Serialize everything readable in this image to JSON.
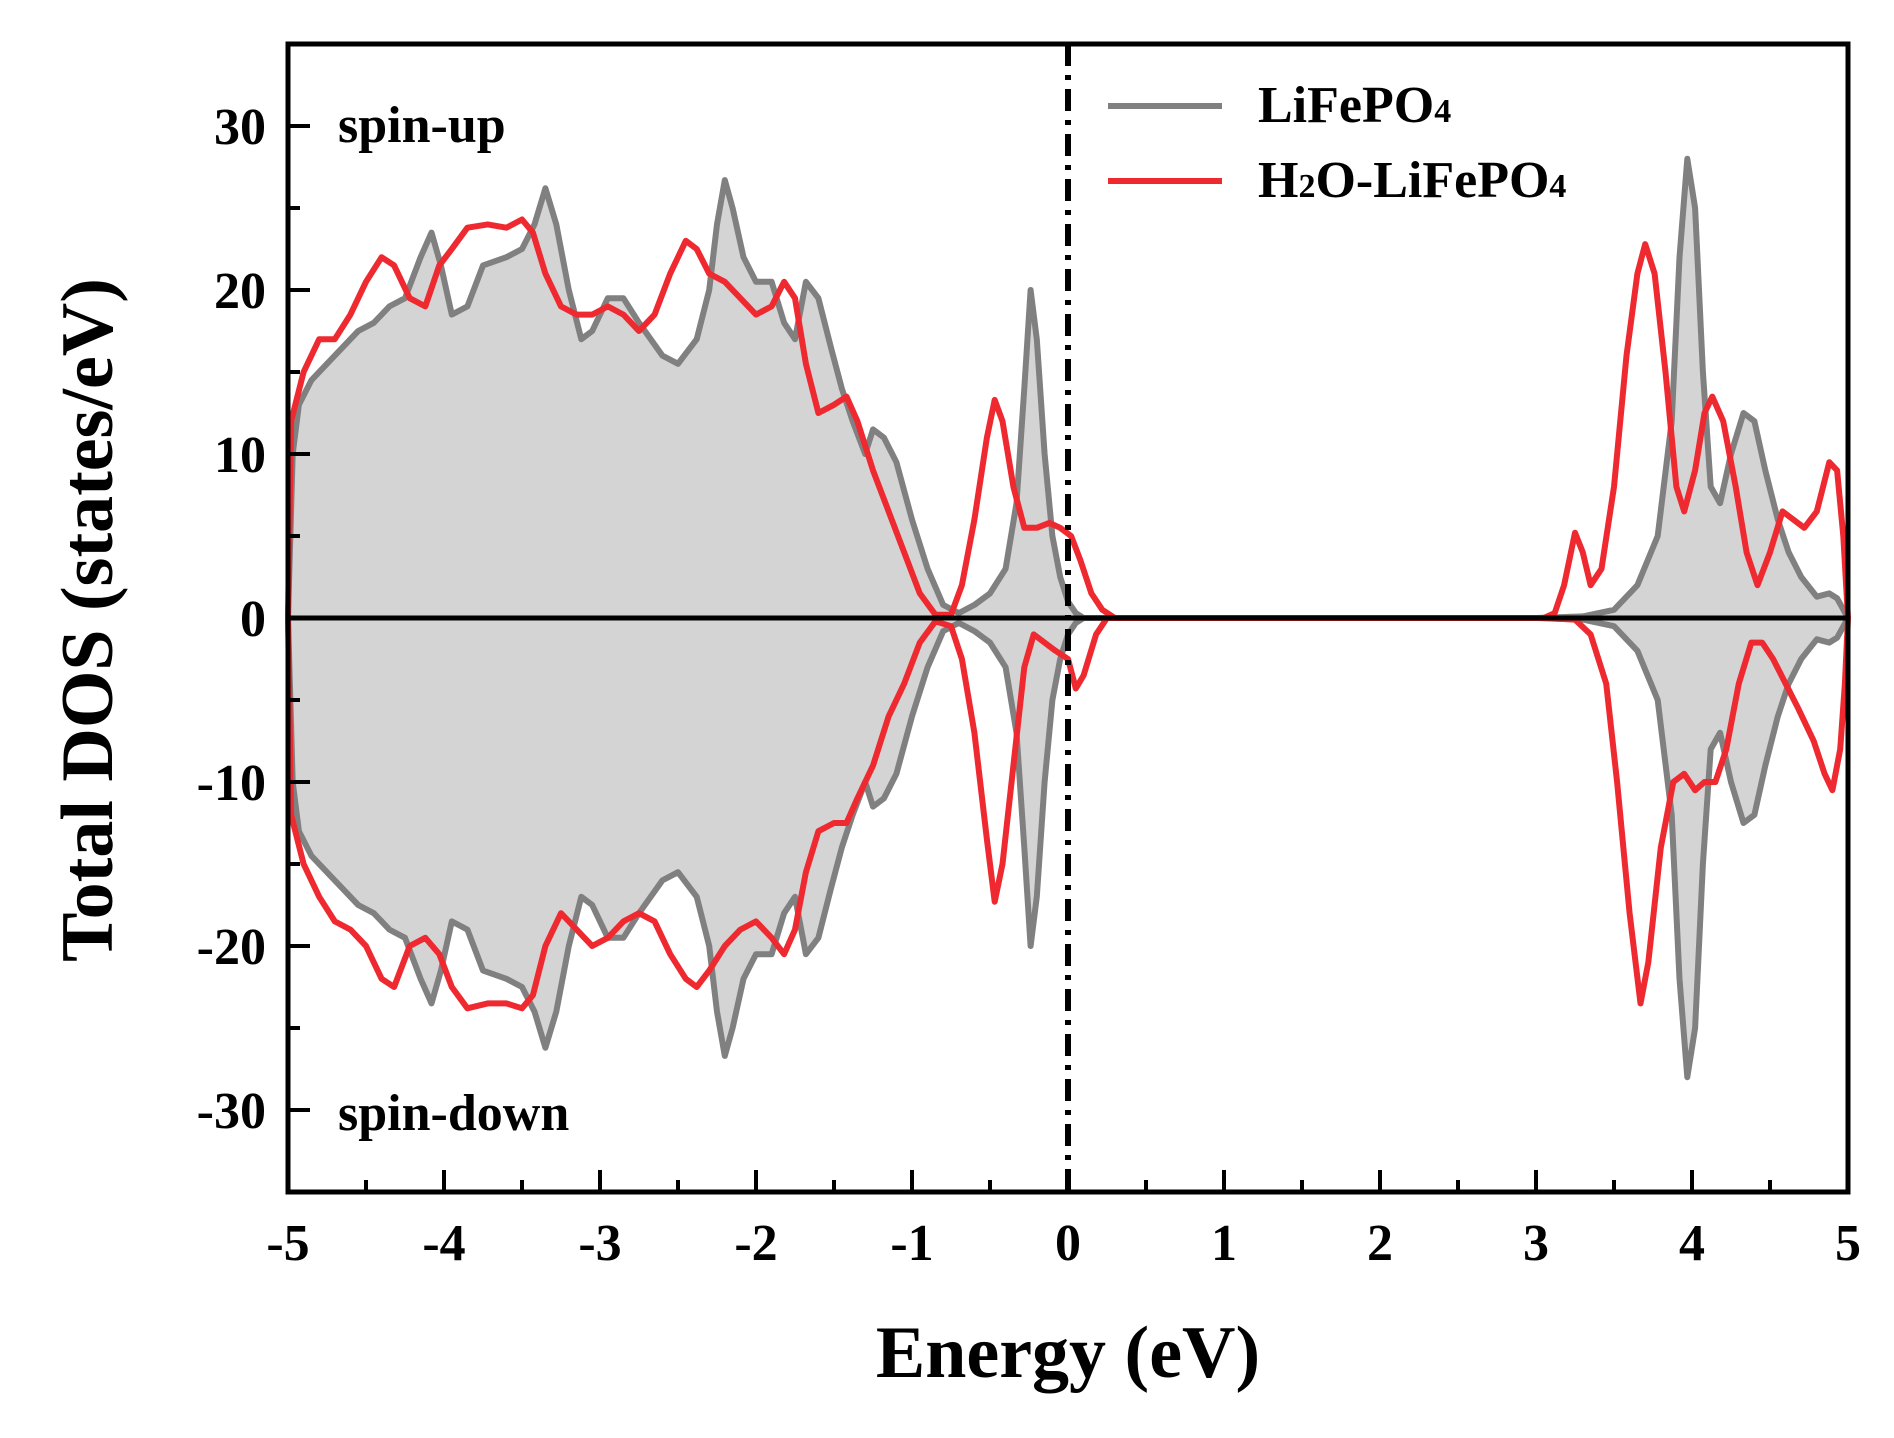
{
  "chart_data": {
    "type": "area",
    "xlabel": "Energy (eV)",
    "ylabel": "Total DOS (states/eV)",
    "xlim": [
      -5,
      5
    ],
    "ylim": [
      -35,
      35
    ],
    "x_ticks": [
      -5,
      -4,
      -3,
      -2,
      -1,
      0,
      1,
      2,
      3,
      4,
      5
    ],
    "y_ticks": [
      -30,
      -20,
      -10,
      0,
      10,
      20,
      30
    ],
    "x_tick_labels": [
      "-5",
      "-4",
      "-3",
      "-2",
      "-1",
      "0",
      "1",
      "2",
      "3",
      "4",
      "5"
    ],
    "y_tick_labels": [
      "-30",
      "-20",
      "-10",
      "0",
      "10",
      "20",
      "30"
    ],
    "annotations": {
      "spin_up": "spin-up",
      "spin_down": "spin-down"
    },
    "fermi_level": 0,
    "legend_position": "top-right",
    "legend": [
      {
        "text": "LiFePO",
        "sub": "4"
      },
      {
        "text": "H",
        "sub": "2",
        "text2": "O-LiFePO",
        "sub2": "4"
      }
    ],
    "series": [
      {
        "name": "LiFePO4",
        "color": "#808080",
        "fill": "#d4d4d4",
        "spin_down_mirrors_spin_up": true,
        "points": [
          [
            -5.0,
            0
          ],
          [
            -4.97,
            10
          ],
          [
            -4.93,
            13
          ],
          [
            -4.85,
            14.5
          ],
          [
            -4.7,
            16
          ],
          [
            -4.55,
            17.5
          ],
          [
            -4.45,
            18
          ],
          [
            -4.35,
            19
          ],
          [
            -4.25,
            19.5
          ],
          [
            -4.15,
            22
          ],
          [
            -4.08,
            23.5
          ],
          [
            -4.02,
            21.5
          ],
          [
            -3.95,
            18.5
          ],
          [
            -3.85,
            19
          ],
          [
            -3.75,
            21.5
          ],
          [
            -3.6,
            22
          ],
          [
            -3.5,
            22.5
          ],
          [
            -3.42,
            24
          ],
          [
            -3.35,
            26.2
          ],
          [
            -3.28,
            24
          ],
          [
            -3.2,
            20
          ],
          [
            -3.12,
            17
          ],
          [
            -3.05,
            17.5
          ],
          [
            -2.95,
            19.5
          ],
          [
            -2.85,
            19.5
          ],
          [
            -2.75,
            18
          ],
          [
            -2.6,
            16
          ],
          [
            -2.5,
            15.5
          ],
          [
            -2.38,
            17
          ],
          [
            -2.3,
            20
          ],
          [
            -2.25,
            24
          ],
          [
            -2.2,
            26.7
          ],
          [
            -2.15,
            25
          ],
          [
            -2.08,
            22
          ],
          [
            -2.0,
            20.5
          ],
          [
            -1.9,
            20.5
          ],
          [
            -1.82,
            18
          ],
          [
            -1.75,
            17
          ],
          [
            -1.68,
            20.5
          ],
          [
            -1.6,
            19.5
          ],
          [
            -1.52,
            16.5
          ],
          [
            -1.45,
            14
          ],
          [
            -1.38,
            12
          ],
          [
            -1.3,
            10
          ],
          [
            -1.25,
            11.5
          ],
          [
            -1.18,
            11
          ],
          [
            -1.1,
            9.5
          ],
          [
            -1.0,
            6
          ],
          [
            -0.9,
            3
          ],
          [
            -0.8,
            0.8
          ],
          [
            -0.7,
            0.3
          ],
          [
            -0.6,
            0.8
          ],
          [
            -0.5,
            1.5
          ],
          [
            -0.4,
            3
          ],
          [
            -0.33,
            7
          ],
          [
            -0.28,
            14
          ],
          [
            -0.24,
            20
          ],
          [
            -0.2,
            17
          ],
          [
            -0.15,
            10
          ],
          [
            -0.1,
            5
          ],
          [
            -0.05,
            2.5
          ],
          [
            0.0,
            1
          ],
          [
            0.05,
            0.3
          ],
          [
            0.1,
            0
          ],
          [
            3.0,
            0
          ],
          [
            3.3,
            0.1
          ],
          [
            3.5,
            0.5
          ],
          [
            3.65,
            2
          ],
          [
            3.78,
            5
          ],
          [
            3.87,
            12
          ],
          [
            3.92,
            22
          ],
          [
            3.97,
            28
          ],
          [
            4.02,
            25
          ],
          [
            4.07,
            15
          ],
          [
            4.12,
            8
          ],
          [
            4.18,
            7
          ],
          [
            4.25,
            10
          ],
          [
            4.33,
            12.5
          ],
          [
            4.4,
            12
          ],
          [
            4.47,
            9
          ],
          [
            4.55,
            6
          ],
          [
            4.62,
            4
          ],
          [
            4.7,
            2.5
          ],
          [
            4.8,
            1.3
          ],
          [
            4.88,
            1.5
          ],
          [
            4.93,
            1.2
          ],
          [
            5.0,
            0
          ]
        ]
      },
      {
        "name": "H2O-LiFePO4",
        "color": "#ee2a30",
        "spin_up": [
          [
            -5.0,
            0
          ],
          [
            -4.98,
            12
          ],
          [
            -4.9,
            15
          ],
          [
            -4.8,
            17
          ],
          [
            -4.7,
            17
          ],
          [
            -4.6,
            18.5
          ],
          [
            -4.5,
            20.5
          ],
          [
            -4.4,
            22
          ],
          [
            -4.32,
            21.5
          ],
          [
            -4.22,
            19.5
          ],
          [
            -4.12,
            19
          ],
          [
            -4.03,
            21.5
          ],
          [
            -3.95,
            22.5
          ],
          [
            -3.85,
            23.8
          ],
          [
            -3.72,
            24
          ],
          [
            -3.6,
            23.8
          ],
          [
            -3.5,
            24.3
          ],
          [
            -3.43,
            23.5
          ],
          [
            -3.35,
            21
          ],
          [
            -3.25,
            19
          ],
          [
            -3.15,
            18.5
          ],
          [
            -3.05,
            18.5
          ],
          [
            -2.95,
            19
          ],
          [
            -2.85,
            18.5
          ],
          [
            -2.75,
            17.5
          ],
          [
            -2.65,
            18.5
          ],
          [
            -2.55,
            21
          ],
          [
            -2.45,
            23
          ],
          [
            -2.38,
            22.5
          ],
          [
            -2.3,
            21
          ],
          [
            -2.2,
            20.5
          ],
          [
            -2.1,
            19.5
          ],
          [
            -2.0,
            18.5
          ],
          [
            -1.9,
            19
          ],
          [
            -1.82,
            20.5
          ],
          [
            -1.75,
            19.5
          ],
          [
            -1.68,
            15.5
          ],
          [
            -1.6,
            12.5
          ],
          [
            -1.5,
            13
          ],
          [
            -1.42,
            13.5
          ],
          [
            -1.35,
            12
          ],
          [
            -1.25,
            9
          ],
          [
            -1.15,
            6.5
          ],
          [
            -1.05,
            4
          ],
          [
            -0.95,
            1.5
          ],
          [
            -0.85,
            0.2
          ],
          [
            -0.75,
            0.2
          ],
          [
            -0.68,
            2
          ],
          [
            -0.6,
            6
          ],
          [
            -0.52,
            11
          ],
          [
            -0.47,
            13.3
          ],
          [
            -0.42,
            12
          ],
          [
            -0.35,
            8
          ],
          [
            -0.28,
            5.5
          ],
          [
            -0.2,
            5.5
          ],
          [
            -0.12,
            5.8
          ],
          [
            -0.05,
            5.5
          ],
          [
            0.02,
            5
          ],
          [
            0.08,
            3.5
          ],
          [
            0.15,
            1.5
          ],
          [
            0.22,
            0.5
          ],
          [
            0.3,
            0
          ],
          [
            3.05,
            0
          ],
          [
            3.12,
            0.3
          ],
          [
            3.18,
            2
          ],
          [
            3.25,
            5.2
          ],
          [
            3.3,
            4
          ],
          [
            3.35,
            2
          ],
          [
            3.42,
            3
          ],
          [
            3.5,
            8
          ],
          [
            3.58,
            16
          ],
          [
            3.65,
            21
          ],
          [
            3.7,
            22.8
          ],
          [
            3.76,
            21
          ],
          [
            3.83,
            15
          ],
          [
            3.9,
            8
          ],
          [
            3.95,
            6.5
          ],
          [
            4.02,
            9
          ],
          [
            4.08,
            12.5
          ],
          [
            4.13,
            13.5
          ],
          [
            4.2,
            12
          ],
          [
            4.28,
            8
          ],
          [
            4.35,
            4
          ],
          [
            4.42,
            2
          ],
          [
            4.5,
            4
          ],
          [
            4.58,
            6.5
          ],
          [
            4.65,
            6
          ],
          [
            4.72,
            5.5
          ],
          [
            4.8,
            6.5
          ],
          [
            4.88,
            9.5
          ],
          [
            4.93,
            9
          ],
          [
            4.97,
            5
          ],
          [
            5.0,
            0
          ]
        ],
        "spin_down": [
          [
            -5.0,
            0
          ],
          [
            -4.98,
            -12
          ],
          [
            -4.9,
            -15
          ],
          [
            -4.8,
            -17
          ],
          [
            -4.7,
            -18.5
          ],
          [
            -4.6,
            -19
          ],
          [
            -4.5,
            -20
          ],
          [
            -4.4,
            -22
          ],
          [
            -4.32,
            -22.5
          ],
          [
            -4.22,
            -20
          ],
          [
            -4.12,
            -19.5
          ],
          [
            -4.03,
            -20.5
          ],
          [
            -3.95,
            -22.5
          ],
          [
            -3.85,
            -23.8
          ],
          [
            -3.72,
            -23.5
          ],
          [
            -3.6,
            -23.5
          ],
          [
            -3.5,
            -23.8
          ],
          [
            -3.43,
            -23
          ],
          [
            -3.35,
            -20
          ],
          [
            -3.25,
            -18
          ],
          [
            -3.15,
            -19
          ],
          [
            -3.05,
            -20
          ],
          [
            -2.95,
            -19.5
          ],
          [
            -2.85,
            -18.5
          ],
          [
            -2.75,
            -18
          ],
          [
            -2.65,
            -18.5
          ],
          [
            -2.55,
            -20.5
          ],
          [
            -2.45,
            -22
          ],
          [
            -2.38,
            -22.5
          ],
          [
            -2.3,
            -21.5
          ],
          [
            -2.2,
            -20
          ],
          [
            -2.1,
            -19
          ],
          [
            -2.0,
            -18.5
          ],
          [
            -1.9,
            -19.5
          ],
          [
            -1.82,
            -20.5
          ],
          [
            -1.75,
            -19
          ],
          [
            -1.68,
            -15.5
          ],
          [
            -1.6,
            -13
          ],
          [
            -1.5,
            -12.5
          ],
          [
            -1.42,
            -12.5
          ],
          [
            -1.35,
            -11
          ],
          [
            -1.25,
            -9
          ],
          [
            -1.15,
            -6
          ],
          [
            -1.05,
            -4
          ],
          [
            -0.95,
            -1.5
          ],
          [
            -0.85,
            -0.2
          ],
          [
            -0.75,
            -0.5
          ],
          [
            -0.68,
            -2.5
          ],
          [
            -0.6,
            -7
          ],
          [
            -0.52,
            -13.5
          ],
          [
            -0.47,
            -17.3
          ],
          [
            -0.42,
            -15
          ],
          [
            -0.35,
            -9
          ],
          [
            -0.28,
            -3
          ],
          [
            -0.22,
            -1
          ],
          [
            -0.15,
            -1.5
          ],
          [
            -0.08,
            -2
          ],
          [
            0.0,
            -2.5
          ],
          [
            0.05,
            -4.3
          ],
          [
            0.1,
            -3.5
          ],
          [
            0.18,
            -1
          ],
          [
            0.25,
            0
          ],
          [
            3.05,
            0
          ],
          [
            3.25,
            -0.1
          ],
          [
            3.35,
            -1
          ],
          [
            3.45,
            -4
          ],
          [
            3.52,
            -10
          ],
          [
            3.6,
            -18
          ],
          [
            3.67,
            -23.5
          ],
          [
            3.72,
            -21
          ],
          [
            3.8,
            -14
          ],
          [
            3.88,
            -10
          ],
          [
            3.95,
            -9.5
          ],
          [
            4.02,
            -10.5
          ],
          [
            4.08,
            -10
          ],
          [
            4.15,
            -10
          ],
          [
            4.22,
            -8
          ],
          [
            4.3,
            -4
          ],
          [
            4.38,
            -1.5
          ],
          [
            4.45,
            -1.5
          ],
          [
            4.52,
            -2.5
          ],
          [
            4.6,
            -4
          ],
          [
            4.68,
            -5.5
          ],
          [
            4.78,
            -7.5
          ],
          [
            4.85,
            -9.5
          ],
          [
            4.9,
            -10.5
          ],
          [
            4.95,
            -8
          ],
          [
            4.98,
            -4
          ],
          [
            5.0,
            0
          ]
        ]
      }
    ]
  }
}
